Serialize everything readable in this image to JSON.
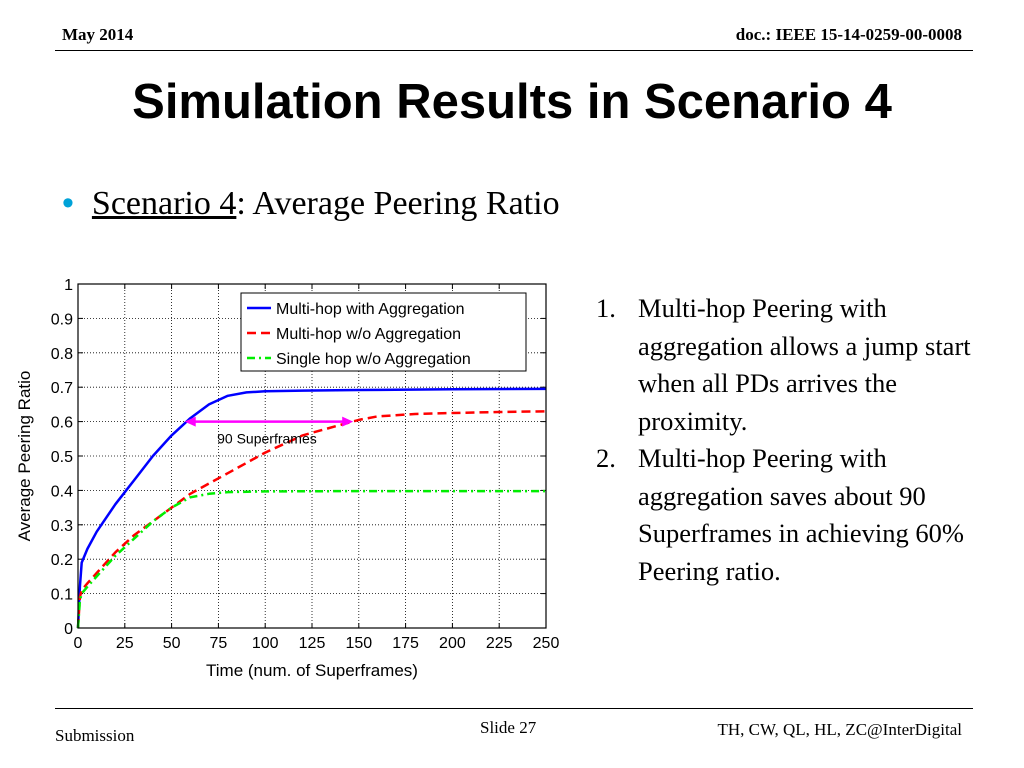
{
  "header": {
    "date": "May 2014",
    "doc": "doc.: IEEE 15-14-0259-00-0008"
  },
  "title": "Simulation Results in Scenario 4",
  "bullet": {
    "link_text": "Scenario 4",
    "rest": ": Average Peering Ratio"
  },
  "notes": [
    {
      "num": "1.",
      "text": "Multi-hop Peering with aggregation allows a jump start when all PDs arrives the proximity."
    },
    {
      "num": "2.",
      "text": "Multi-hop Peering with aggregation saves about 90 Superframes in achieving 60% Peering ratio."
    }
  ],
  "footer": {
    "left": "Submission",
    "center": "Slide 27",
    "right": "TH, CW, QL, HL, ZC@InterDigital"
  },
  "colors": {
    "bullet": "#00a2d8",
    "series1": "#0000ff",
    "series2": "#ff0000",
    "series3": "#00ee00",
    "arrow": "#ff00ff"
  },
  "chart_data": {
    "type": "line",
    "xlabel": "Time (num. of Superframes)",
    "ylabel": "Average Peering Ratio",
    "xlim": [
      0,
      250
    ],
    "ylim": [
      0,
      1
    ],
    "xticks": [
      0,
      25,
      50,
      75,
      100,
      125,
      150,
      175,
      200,
      225,
      250
    ],
    "yticks": [
      0,
      0.1,
      0.2,
      0.3,
      0.4,
      0.5,
      0.6,
      0.7,
      0.8,
      0.9,
      1
    ],
    "grid": true,
    "legend_position": "top-right",
    "series": [
      {
        "name": "Multi-hop with Aggregation",
        "style": "solid",
        "x": [
          0,
          1,
          2,
          5,
          10,
          20,
          30,
          40,
          50,
          60,
          70,
          80,
          90,
          100,
          120,
          150,
          200,
          250
        ],
        "y": [
          0,
          0.12,
          0.19,
          0.23,
          0.28,
          0.36,
          0.43,
          0.5,
          0.56,
          0.61,
          0.65,
          0.675,
          0.685,
          0.688,
          0.69,
          0.692,
          0.694,
          0.695
        ]
      },
      {
        "name": "Multi-hop w/o Aggregation",
        "style": "dashed",
        "x": [
          0,
          1,
          2,
          5,
          10,
          20,
          30,
          40,
          50,
          60,
          70,
          80,
          100,
          120,
          140,
          150,
          160,
          180,
          200,
          225,
          250
        ],
        "y": [
          0,
          0.09,
          0.11,
          0.13,
          0.16,
          0.22,
          0.27,
          0.31,
          0.35,
          0.39,
          0.42,
          0.45,
          0.51,
          0.56,
          0.59,
          0.605,
          0.615,
          0.622,
          0.625,
          0.628,
          0.63
        ]
      },
      {
        "name": "Single hop w/o Aggregation",
        "style": "dashdot",
        "x": [
          0,
          1,
          2,
          5,
          10,
          20,
          30,
          40,
          50,
          60,
          70,
          80,
          100,
          150,
          200,
          250
        ],
        "y": [
          0,
          0.08,
          0.1,
          0.12,
          0.15,
          0.21,
          0.26,
          0.31,
          0.35,
          0.38,
          0.39,
          0.395,
          0.397,
          0.398,
          0.398,
          0.398
        ]
      }
    ],
    "annotation": {
      "text": "90 Superframes",
      "x_start": 57,
      "x_end": 147,
      "y": 0.6
    }
  }
}
